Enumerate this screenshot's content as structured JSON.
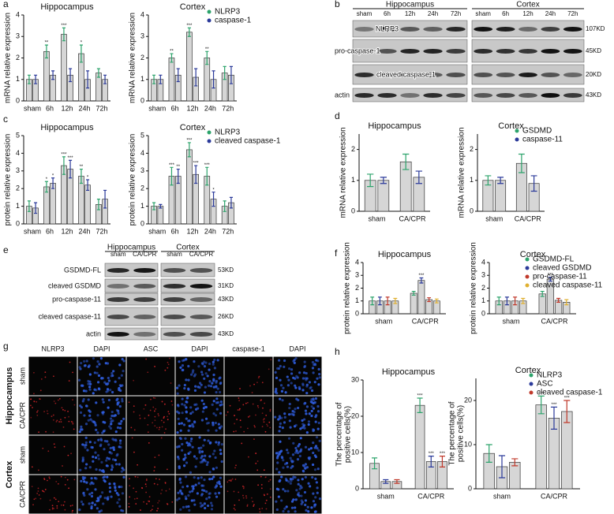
{
  "panel_labels": [
    "a",
    "b",
    "c",
    "d",
    "e",
    "f",
    "g",
    "h"
  ],
  "chart_data": [
    {
      "type": "bar",
      "title": "Hippocampus",
      "ylabel": "mRNA relative expression",
      "categories": [
        "sham",
        "6h",
        "12h",
        "24h",
        "72h"
      ],
      "ylim": [
        0,
        4
      ],
      "yticks": [
        0,
        1,
        2,
        3,
        4
      ],
      "bar_color": "#d6d6d6",
      "series": [
        {
          "color": "#2ca36b",
          "values": [
            1.0,
            2.3,
            3.1,
            2.2,
            1.3
          ],
          "errors": [
            0.2,
            0.3,
            0.3,
            0.4,
            0.2
          ],
          "stars": [
            null,
            "**",
            "***",
            "*",
            null
          ]
        },
        {
          "color": "#2b3a9a",
          "values": [
            1.0,
            1.2,
            1.2,
            1.0,
            1.0
          ],
          "errors": [
            0.2,
            0.2,
            0.3,
            0.4,
            0.2
          ]
        }
      ]
    },
    {
      "type": "bar",
      "title": "Cortex",
      "ylabel": "mRNA relative expression",
      "categories": [
        "sham",
        "6h",
        "12h",
        "24h",
        "72h"
      ],
      "ylim": [
        0,
        4
      ],
      "yticks": [
        0,
        1,
        2,
        3,
        4
      ],
      "bar_color": "#d6d6d6",
      "legend": "upper right",
      "series": [
        {
          "name": "NLRP3",
          "color": "#2ca36b",
          "values": [
            1.0,
            2.0,
            3.2,
            2.0,
            1.3
          ],
          "errors": [
            0.2,
            0.2,
            0.2,
            0.3,
            0.3
          ],
          "stars": [
            null,
            "**",
            "***",
            "**",
            null
          ]
        },
        {
          "name": "caspase-1",
          "color": "#2b3a9a",
          "values": [
            1.0,
            1.2,
            1.1,
            1.0,
            1.2
          ],
          "errors": [
            0.2,
            0.3,
            0.4,
            0.4,
            0.4
          ]
        }
      ]
    },
    {
      "type": "bar",
      "title": "Hippocampus",
      "ylabel": "protein relative expression",
      "categories": [
        "sham",
        "6h",
        "12h",
        "24h",
        "72h"
      ],
      "ylim": [
        0,
        5
      ],
      "yticks": [
        0,
        1,
        2,
        3,
        4,
        5
      ],
      "bar_color": "#d6d6d6",
      "series": [
        {
          "color": "#2ca36b",
          "values": [
            1.0,
            2.1,
            3.3,
            2.7,
            1.1
          ],
          "errors": [
            0.3,
            0.3,
            0.5,
            0.4,
            0.3
          ],
          "stars": [
            null,
            "*",
            "***",
            "**",
            null
          ]
        },
        {
          "color": "#2b3a9a",
          "values": [
            0.9,
            2.3,
            3.1,
            2.2,
            1.4
          ],
          "errors": [
            0.3,
            0.3,
            0.5,
            0.3,
            0.5
          ],
          "stars": [
            null,
            "*",
            "***",
            "*",
            null
          ]
        }
      ]
    },
    {
      "type": "bar",
      "title": "Cortex",
      "ylabel": "protein relative expression",
      "categories": [
        "sham",
        "6h",
        "12h",
        "24h",
        "72h"
      ],
      "ylim": [
        0,
        5
      ],
      "yticks": [
        0,
        1,
        2,
        3,
        4,
        5
      ],
      "bar_color": "#d6d6d6",
      "legend": "upper right",
      "series": [
        {
          "name": "NLRP3",
          "color": "#2ca36b",
          "values": [
            1.0,
            2.7,
            4.2,
            2.7,
            1.0
          ],
          "errors": [
            0.2,
            0.5,
            0.4,
            0.5,
            0.3
          ],
          "stars": [
            null,
            "***",
            "***",
            "***",
            null
          ]
        },
        {
          "name": "cleaved caspase-1",
          "color": "#2b3a9a",
          "values": [
            1.0,
            2.7,
            2.8,
            1.4,
            1.2
          ],
          "errors": [
            0.1,
            0.4,
            0.5,
            0.4,
            0.3
          ],
          "stars": [
            null,
            "**",
            "***",
            "*",
            null
          ]
        }
      ]
    },
    {
      "type": "bar",
      "title": "Hippocampus",
      "ylabel": "mRNA relative expression",
      "categories": [
        "sham",
        "CA/CPR"
      ],
      "ylim": [
        0,
        2.5
      ],
      "yticks": [
        0,
        1,
        2
      ],
      "bar_color": "#d6d6d6",
      "series": [
        {
          "color": "#2ca36b",
          "values": [
            1.0,
            1.6
          ],
          "errors": [
            0.2,
            0.25
          ]
        },
        {
          "color": "#2b3a9a",
          "values": [
            1.0,
            1.1
          ],
          "errors": [
            0.1,
            0.2
          ]
        }
      ]
    },
    {
      "type": "bar",
      "title": "Cortex",
      "ylabel": "mRNA relative expression",
      "categories": [
        "sham",
        "CA/CPR"
      ],
      "ylim": [
        0,
        2.5
      ],
      "yticks": [
        0,
        1,
        2
      ],
      "bar_color": "#d6d6d6",
      "legend": "upper right",
      "series": [
        {
          "name": "GSDMD",
          "color": "#2ca36b",
          "values": [
            1.0,
            1.55
          ],
          "errors": [
            0.15,
            0.3
          ]
        },
        {
          "name": "caspase-11",
          "color": "#2b3a9a",
          "values": [
            1.0,
            0.9
          ],
          "errors": [
            0.1,
            0.25
          ]
        }
      ]
    },
    {
      "type": "bar",
      "title": "Hippocampus",
      "ylabel": "protein relative expression",
      "categories": [
        "sham",
        "CA/CPR"
      ],
      "ylim": [
        0,
        4
      ],
      "yticks": [
        0,
        1,
        2,
        3,
        4
      ],
      "bar_color": "#d6d6d6",
      "series": [
        {
          "color": "#2ca36b",
          "values": [
            1.0,
            1.6
          ],
          "errors": [
            0.3,
            0.15
          ]
        },
        {
          "color": "#2b3a9a",
          "values": [
            1.0,
            2.6
          ],
          "errors": [
            0.3,
            0.2
          ],
          "stars": [
            null,
            "***"
          ]
        },
        {
          "color": "#c0392b",
          "values": [
            1.0,
            1.1
          ],
          "errors": [
            0.3,
            0.15
          ]
        },
        {
          "color": "#e0b030",
          "values": [
            1.0,
            1.0
          ],
          "errors": [
            0.2,
            0.15
          ]
        }
      ]
    },
    {
      "type": "bar",
      "title": "Cortex",
      "ylabel": "protein relative expression",
      "categories": [
        "sham",
        "CA/CPR"
      ],
      "ylim": [
        0,
        4
      ],
      "yticks": [
        0,
        1,
        2,
        3,
        4
      ],
      "bar_color": "#d6d6d6",
      "legend": "upper right",
      "series": [
        {
          "name": "GSDMD-FL",
          "color": "#2ca36b",
          "values": [
            1.0,
            1.55
          ],
          "errors": [
            0.3,
            0.2
          ]
        },
        {
          "name": "cleaved GSDMD",
          "color": "#2b3a9a",
          "values": [
            1.0,
            2.7
          ],
          "errors": [
            0.3,
            0.15
          ],
          "stars": [
            null,
            "***"
          ]
        },
        {
          "name": "pro-caspase-11",
          "color": "#c0392b",
          "values": [
            1.0,
            1.05
          ],
          "errors": [
            0.3,
            0.15
          ]
        },
        {
          "name": "cleaved caspase-11",
          "color": "#e0b030",
          "values": [
            1.0,
            0.9
          ],
          "errors": [
            0.2,
            0.2
          ]
        }
      ]
    },
    {
      "type": "bar",
      "title": "Hippocampus",
      "ylabel": [
        "The percentage of",
        "positive cells(%)"
      ],
      "categories": [
        "sham",
        "CA/CPR"
      ],
      "ylim": [
        0,
        30
      ],
      "yticks": [
        0,
        10,
        20,
        30
      ],
      "bar_color": "#d6d6d6",
      "series": [
        {
          "color": "#2ca36b",
          "values": [
            7,
            23
          ],
          "errors": [
            1.5,
            2
          ],
          "stars": [
            null,
            "***"
          ]
        },
        {
          "color": "#2b3a9a",
          "values": [
            2,
            7.5
          ],
          "errors": [
            0.5,
            1.5
          ],
          "stars": [
            null,
            "***"
          ]
        },
        {
          "color": "#c0392b",
          "values": [
            2,
            7.5
          ],
          "errors": [
            0.5,
            1.5
          ],
          "stars": [
            null,
            "***"
          ]
        }
      ]
    },
    {
      "type": "bar",
      "title": "Cortex",
      "ylabel": [
        "The percentage of",
        "positive cells(%)"
      ],
      "categories": [
        "sham",
        "CA/CPR"
      ],
      "ylim": [
        0,
        25
      ],
      "yticks": [
        0,
        10,
        20
      ],
      "bar_color": "#d6d6d6",
      "legend": "upper right",
      "series": [
        {
          "name": "NLRP3",
          "color": "#2ca36b",
          "values": [
            8,
            19
          ],
          "errors": [
            2,
            2
          ],
          "stars": [
            null,
            "***"
          ]
        },
        {
          "name": "ASC",
          "color": "#2b3a9a",
          "values": [
            5,
            16
          ],
          "errors": [
            2.5,
            2.5
          ],
          "stars": [
            null,
            "***"
          ]
        },
        {
          "name": "cleaved caspase-1",
          "color": "#c0392b",
          "values": [
            6,
            17.5
          ],
          "errors": [
            0.8,
            2.5
          ],
          "stars": [
            null,
            "***"
          ]
        }
      ]
    }
  ],
  "blot_b": {
    "groups": [
      "Hippocampus",
      "Cortex"
    ],
    "lanes": [
      "sham",
      "6h",
      "12h",
      "24h",
      "72h"
    ],
    "rows": [
      "NLRP3",
      "pro-caspase-1",
      "cleaved caspase-1",
      "actin"
    ],
    "sizes": [
      "107KD",
      "45KD",
      "20KD",
      "43KD"
    ]
  },
  "blot_e": {
    "groups": [
      "Hippocampus",
      "Cortex"
    ],
    "lanes": [
      "sham",
      "CA/CPR"
    ],
    "rows": [
      "GSDMD-FL",
      "cleaved GSDMD",
      "pro-caspase-11",
      "cleaved caspase-11",
      "actin"
    ],
    "sizes": [
      "53KD",
      "31KD",
      "43KD",
      "26KD",
      "43KD"
    ]
  },
  "images_g": {
    "columns": [
      "NLRP3",
      "DAPI",
      "ASC",
      "DAPI",
      "caspase-1",
      "DAPI"
    ],
    "regions": [
      "Hippocampus",
      "Cortex"
    ],
    "conditions": [
      "sham",
      "CA/CPR"
    ]
  }
}
